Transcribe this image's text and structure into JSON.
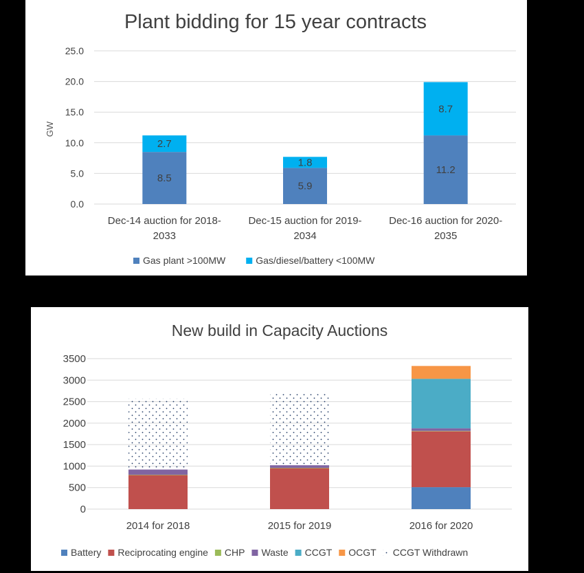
{
  "charts": [
    {
      "title": "Plant bidding for  15 year contracts",
      "ylabel": "GW",
      "type": "bar",
      "stacked": true,
      "ylim": [
        0,
        25
      ],
      "yticks": [
        "0.0",
        "5.0",
        "10.0",
        "15.0",
        "20.0",
        "25.0"
      ],
      "categories": [
        [
          "Dec-14 auction for 2018-",
          "2033"
        ],
        [
          "Dec-15 auction for 2019-",
          "2034"
        ],
        [
          "Dec-16 auction for 2020-",
          "2035"
        ]
      ],
      "series": [
        {
          "name": "Gas plant >100MW",
          "color": "#4F81BD",
          "values": [
            8.5,
            5.9,
            11.2
          ],
          "labels": [
            "8.5",
            "5.9",
            "11.2"
          ]
        },
        {
          "name": "Gas/diesel/battery <100MW",
          "color": "#00B0F0",
          "values": [
            2.7,
            1.8,
            8.7
          ],
          "labels": [
            "2.7",
            "1.8",
            "8.7"
          ]
        }
      ],
      "legend_position": "bottom",
      "grid": true
    },
    {
      "title": "New build in Capacity Auctions",
      "ylabel": "",
      "type": "bar",
      "stacked": true,
      "ylim": [
        0,
        3500
      ],
      "yticks": [
        "0",
        "500",
        "1000",
        "1500",
        "2000",
        "2500",
        "3000",
        "3500"
      ],
      "categories": [
        [
          "2014 for 2018"
        ],
        [
          "2015 for 2019"
        ],
        [
          "2016 for 2020"
        ]
      ],
      "series": [
        {
          "name": "Battery",
          "color": "#4F81BD",
          "values": [
            0,
            0,
            510
          ]
        },
        {
          "name": "Reciprocating engine",
          "color": "#C0504D",
          "values": [
            790,
            950,
            1300
          ]
        },
        {
          "name": "CHP",
          "color": "#9BBB59",
          "values": [
            10,
            10,
            10
          ]
        },
        {
          "name": "Waste",
          "color": "#8064A2",
          "values": [
            120,
            60,
            60
          ]
        },
        {
          "name": "CCGT",
          "color": "#4BACC6",
          "values": [
            0,
            0,
            1150
          ]
        },
        {
          "name": "OCGT",
          "color": "#F79646",
          "values": [
            0,
            0,
            300
          ]
        },
        {
          "name": "CCGT Withdrawn",
          "color": "#1F3864",
          "pattern": "dots",
          "values": [
            1650,
            1700,
            0
          ]
        }
      ],
      "legend_position": "bottom",
      "grid": true
    }
  ]
}
